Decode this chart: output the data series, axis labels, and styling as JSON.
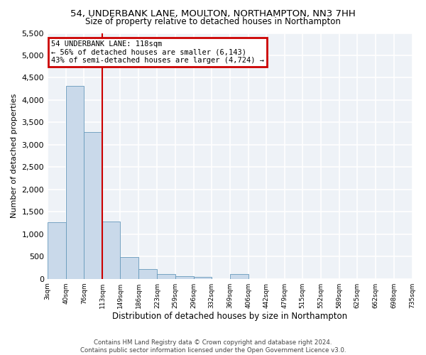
{
  "title_line1": "54, UNDERBANK LANE, MOULTON, NORTHAMPTON, NN3 7HH",
  "title_line2": "Size of property relative to detached houses in Northampton",
  "xlabel": "Distribution of detached houses by size in Northampton",
  "ylabel": "Number of detached properties",
  "annotation_title": "54 UNDERBANK LANE: 118sqm",
  "annotation_line2": "← 56% of detached houses are smaller (6,143)",
  "annotation_line3": "43% of semi-detached houses are larger (4,724) →",
  "footer_line1": "Contains HM Land Registry data © Crown copyright and database right 2024.",
  "footer_line2": "Contains public sector information licensed under the Open Government Licence v3.0.",
  "bar_color": "#c9d9ea",
  "bar_edge_color": "#6699bb",
  "vline_color": "#cc0000",
  "annotation_box_edge": "#cc0000",
  "background_color": "#eef2f7",
  "grid_color": "#ffffff",
  "bins": [
    3,
    40,
    76,
    113,
    149,
    186,
    223,
    259,
    296,
    332,
    369,
    406,
    442,
    479,
    515,
    552,
    589,
    625,
    662,
    698,
    735
  ],
  "bin_labels": [
    "3sqm",
    "40sqm",
    "76sqm",
    "113sqm",
    "149sqm",
    "186sqm",
    "223sqm",
    "259sqm",
    "296sqm",
    "332sqm",
    "369sqm",
    "406sqm",
    "442sqm",
    "479sqm",
    "515sqm",
    "552sqm",
    "589sqm",
    "625sqm",
    "662sqm",
    "698sqm",
    "735sqm"
  ],
  "values": [
    1270,
    4320,
    3290,
    1290,
    480,
    215,
    100,
    65,
    50,
    0,
    100,
    0,
    0,
    0,
    0,
    0,
    0,
    0,
    0,
    0
  ],
  "vline_x": 113,
  "ylim": [
    0,
    5500
  ],
  "yticks": [
    0,
    500,
    1000,
    1500,
    2000,
    2500,
    3000,
    3500,
    4000,
    4500,
    5000,
    5500
  ]
}
